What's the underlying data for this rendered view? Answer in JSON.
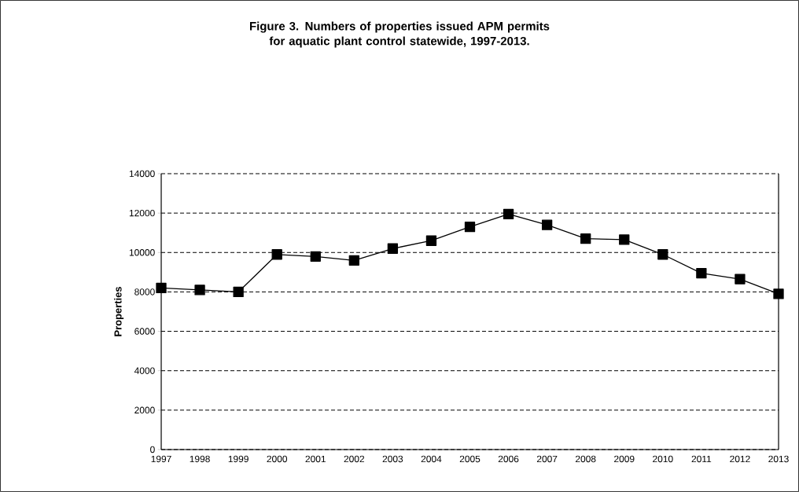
{
  "chart_data": {
    "type": "line",
    "title": "Figure 3. Numbers of properties issued APM permits for aquatic plant control statewide, 1997-2013.",
    "ylabel": "Properties",
    "categories": [
      "1997",
      "1998",
      "1999",
      "2000",
      "2001",
      "2002",
      "2003",
      "2004",
      "2005",
      "2006",
      "2007",
      "2008",
      "2009",
      "2010",
      "2011",
      "2012",
      "2013"
    ],
    "values": [
      8200,
      8100,
      8000,
      9900,
      9800,
      9600,
      10200,
      10600,
      11300,
      11950,
      11400,
      10700,
      10650,
      9900,
      8950,
      8650,
      7900
    ],
    "color": "#000000",
    "marker": "square",
    "line_style": "solid",
    "ylim": [
      0,
      14000
    ],
    "yticks": [
      0,
      2000,
      4000,
      6000,
      8000,
      10000,
      12000,
      14000
    ],
    "grid": "y"
  }
}
